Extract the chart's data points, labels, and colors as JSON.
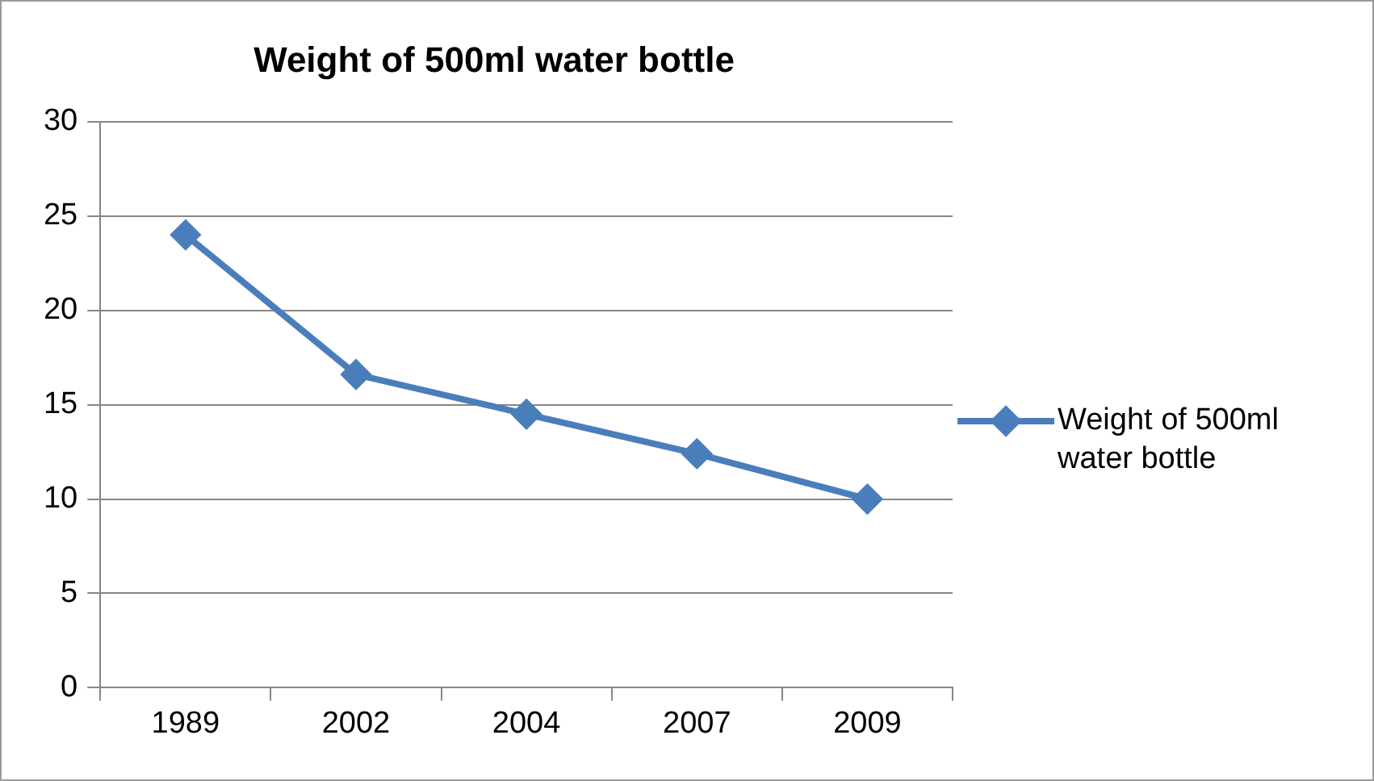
{
  "chart_data": {
    "type": "line",
    "title": "Weight of 500ml water bottle",
    "categories": [
      "1989",
      "2002",
      "2004",
      "2007",
      "2009"
    ],
    "series": [
      {
        "name": "Weight of 500ml water bottle",
        "color": "#4a7ebb",
        "values": [
          24,
          16.6,
          14.5,
          12.4,
          10
        ]
      }
    ],
    "ylim": [
      0,
      30
    ],
    "yticks": [
      0,
      5,
      10,
      15,
      20,
      25,
      30
    ],
    "grid": "y",
    "legend": "right",
    "marker": "diamond",
    "line_style": "solid"
  }
}
